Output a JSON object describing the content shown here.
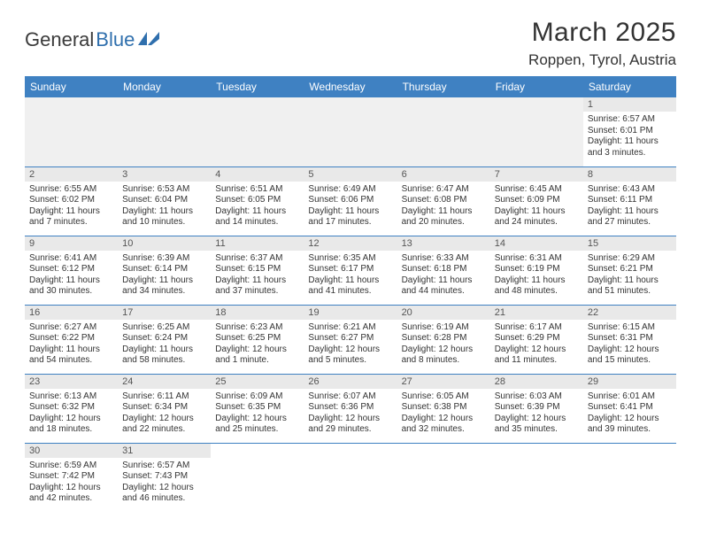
{
  "logo": {
    "text1": "General",
    "text2": "Blue"
  },
  "title": "March 2025",
  "location": "Roppen, Tyrol, Austria",
  "colors": {
    "header_bg": "#3f81c2",
    "header_text": "#ffffff",
    "daynum_bg": "#e9e9e9",
    "border": "#3f81c2",
    "logo_blue": "#2f6fad"
  },
  "weekdays": [
    "Sunday",
    "Monday",
    "Tuesday",
    "Wednesday",
    "Thursday",
    "Friday",
    "Saturday"
  ],
  "weeks": [
    [
      null,
      null,
      null,
      null,
      null,
      null,
      {
        "n": "1",
        "sr": "6:57 AM",
        "ss": "6:01 PM",
        "dl": "11 hours and 3 minutes."
      }
    ],
    [
      {
        "n": "2",
        "sr": "6:55 AM",
        "ss": "6:02 PM",
        "dl": "11 hours and 7 minutes."
      },
      {
        "n": "3",
        "sr": "6:53 AM",
        "ss": "6:04 PM",
        "dl": "11 hours and 10 minutes."
      },
      {
        "n": "4",
        "sr": "6:51 AM",
        "ss": "6:05 PM",
        "dl": "11 hours and 14 minutes."
      },
      {
        "n": "5",
        "sr": "6:49 AM",
        "ss": "6:06 PM",
        "dl": "11 hours and 17 minutes."
      },
      {
        "n": "6",
        "sr": "6:47 AM",
        "ss": "6:08 PM",
        "dl": "11 hours and 20 minutes."
      },
      {
        "n": "7",
        "sr": "6:45 AM",
        "ss": "6:09 PM",
        "dl": "11 hours and 24 minutes."
      },
      {
        "n": "8",
        "sr": "6:43 AM",
        "ss": "6:11 PM",
        "dl": "11 hours and 27 minutes."
      }
    ],
    [
      {
        "n": "9",
        "sr": "6:41 AM",
        "ss": "6:12 PM",
        "dl": "11 hours and 30 minutes."
      },
      {
        "n": "10",
        "sr": "6:39 AM",
        "ss": "6:14 PM",
        "dl": "11 hours and 34 minutes."
      },
      {
        "n": "11",
        "sr": "6:37 AM",
        "ss": "6:15 PM",
        "dl": "11 hours and 37 minutes."
      },
      {
        "n": "12",
        "sr": "6:35 AM",
        "ss": "6:17 PM",
        "dl": "11 hours and 41 minutes."
      },
      {
        "n": "13",
        "sr": "6:33 AM",
        "ss": "6:18 PM",
        "dl": "11 hours and 44 minutes."
      },
      {
        "n": "14",
        "sr": "6:31 AM",
        "ss": "6:19 PM",
        "dl": "11 hours and 48 minutes."
      },
      {
        "n": "15",
        "sr": "6:29 AM",
        "ss": "6:21 PM",
        "dl": "11 hours and 51 minutes."
      }
    ],
    [
      {
        "n": "16",
        "sr": "6:27 AM",
        "ss": "6:22 PM",
        "dl": "11 hours and 54 minutes."
      },
      {
        "n": "17",
        "sr": "6:25 AM",
        "ss": "6:24 PM",
        "dl": "11 hours and 58 minutes."
      },
      {
        "n": "18",
        "sr": "6:23 AM",
        "ss": "6:25 PM",
        "dl": "12 hours and 1 minute."
      },
      {
        "n": "19",
        "sr": "6:21 AM",
        "ss": "6:27 PM",
        "dl": "12 hours and 5 minutes."
      },
      {
        "n": "20",
        "sr": "6:19 AM",
        "ss": "6:28 PM",
        "dl": "12 hours and 8 minutes."
      },
      {
        "n": "21",
        "sr": "6:17 AM",
        "ss": "6:29 PM",
        "dl": "12 hours and 11 minutes."
      },
      {
        "n": "22",
        "sr": "6:15 AM",
        "ss": "6:31 PM",
        "dl": "12 hours and 15 minutes."
      }
    ],
    [
      {
        "n": "23",
        "sr": "6:13 AM",
        "ss": "6:32 PM",
        "dl": "12 hours and 18 minutes."
      },
      {
        "n": "24",
        "sr": "6:11 AM",
        "ss": "6:34 PM",
        "dl": "12 hours and 22 minutes."
      },
      {
        "n": "25",
        "sr": "6:09 AM",
        "ss": "6:35 PM",
        "dl": "12 hours and 25 minutes."
      },
      {
        "n": "26",
        "sr": "6:07 AM",
        "ss": "6:36 PM",
        "dl": "12 hours and 29 minutes."
      },
      {
        "n": "27",
        "sr": "6:05 AM",
        "ss": "6:38 PM",
        "dl": "12 hours and 32 minutes."
      },
      {
        "n": "28",
        "sr": "6:03 AM",
        "ss": "6:39 PM",
        "dl": "12 hours and 35 minutes."
      },
      {
        "n": "29",
        "sr": "6:01 AM",
        "ss": "6:41 PM",
        "dl": "12 hours and 39 minutes."
      }
    ],
    [
      {
        "n": "30",
        "sr": "6:59 AM",
        "ss": "7:42 PM",
        "dl": "12 hours and 42 minutes."
      },
      {
        "n": "31",
        "sr": "6:57 AM",
        "ss": "7:43 PM",
        "dl": "12 hours and 46 minutes."
      },
      null,
      null,
      null,
      null,
      null
    ]
  ],
  "labels": {
    "sunrise": "Sunrise:",
    "sunset": "Sunset:",
    "daylight": "Daylight:"
  }
}
